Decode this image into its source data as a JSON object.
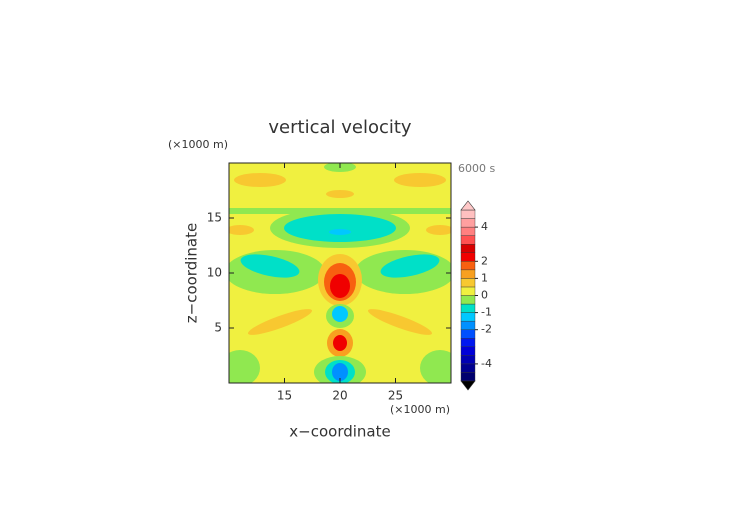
{
  "chart_data": {
    "type": "contour",
    "title": "vertical velocity",
    "time_label": "6000 s",
    "x_label": "x−coordinate",
    "y_label": "z−coordinate",
    "x_unit": "(×1000 m)",
    "y_unit": "(×1000 m)",
    "xlim": [
      10,
      30
    ],
    "xticks": [
      15,
      20,
      25
    ],
    "ylim": [
      0,
      20
    ],
    "yticks": [
      5,
      10,
      15
    ],
    "colorbar": {
      "clim": [
        -5,
        5
      ],
      "ticks": [
        -4,
        -2,
        -1,
        0,
        1,
        2,
        4
      ],
      "colors": [
        "#00006e",
        "#000090",
        "#0000b4",
        "#0000d8",
        "#0018f0",
        "#0050ff",
        "#0090ff",
        "#00c8ff",
        "#00e0c8",
        "#90e850",
        "#f0f040",
        "#f8c830",
        "#f8a020",
        "#f86010",
        "#f00000",
        "#d80000",
        "#ff5050",
        "#ff8080",
        "#ffa0a0",
        "#ffc0c0"
      ],
      "under_color": "#000000",
      "over_color": "#ffc8c8"
    }
  }
}
